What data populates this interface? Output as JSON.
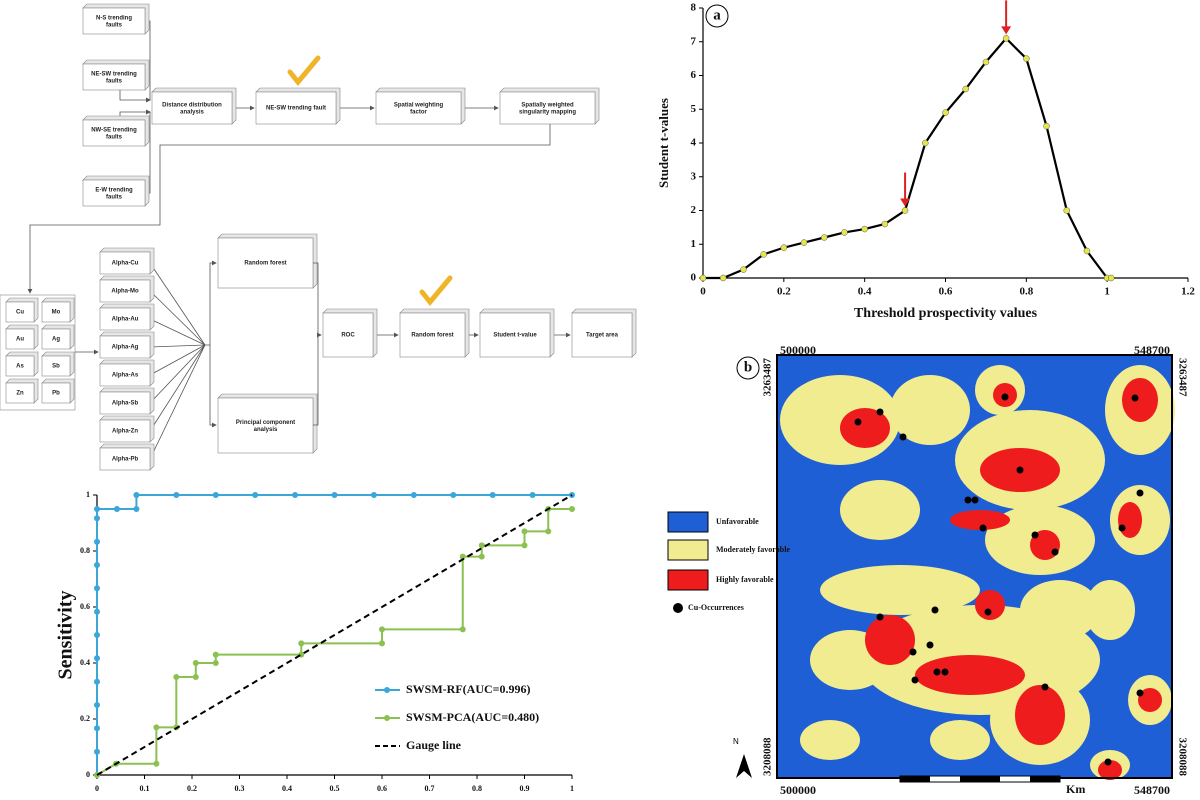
{
  "diagram": {
    "faults": [
      "N-S trending faults",
      "NE-SW trending faults",
      "NW-SE trending faults",
      "E-W  trending faults"
    ],
    "steps": [
      "Distance distribution analysis",
      "NE-SW trending fault",
      "Spatial weighting factor",
      "Spatially weighted singularity mapping"
    ],
    "elements": [
      "Cu",
      "Mo",
      "Au",
      "Ag",
      "As",
      "Sb",
      "Zn",
      "Pb"
    ],
    "alphas": [
      "Alpha-Cu",
      "Alpha-Mo",
      "Alpha-Au",
      "Alpha-Ag",
      "Alpha-As",
      "Alpha-Sb",
      "Alpha-Zn",
      "Alpha-Pb"
    ],
    "methods": [
      "Random forest",
      "Principal component analysis"
    ],
    "pipeline": [
      "ROC",
      "Random forest",
      "Student t-value",
      "Target area"
    ]
  },
  "chart_data": [
    {
      "type": "line",
      "panel": "a",
      "xlabel": "Threshold prospectivity values",
      "ylabel": "Student t-values",
      "x": [
        0,
        0.05,
        0.1,
        0.15,
        0.2,
        0.25,
        0.3,
        0.35,
        0.4,
        0.45,
        0.5,
        0.55,
        0.6,
        0.65,
        0.7,
        0.75,
        0.8,
        0.85,
        0.9,
        0.95,
        1.0,
        1.01
      ],
      "series": [
        {
          "color": "#000000",
          "marker_color": "#e6e64a",
          "values": [
            0,
            0,
            0.25,
            0.7,
            0.9,
            1.05,
            1.2,
            1.35,
            1.45,
            1.6,
            2.0,
            4.0,
            4.9,
            5.6,
            6.4,
            7.1,
            6.5,
            4.5,
            2.0,
            0.8,
            0,
            0
          ]
        }
      ],
      "xlim": [
        0,
        1.2
      ],
      "ylim": [
        0,
        8
      ],
      "xticks": [
        0,
        0.2,
        0.4,
        0.6,
        0.8,
        1,
        1.2
      ],
      "yticks": [
        0,
        1,
        2,
        3,
        4,
        5,
        6,
        7,
        8
      ]
    },
    {
      "type": "line",
      "ylabel": "Sensitivity",
      "series": [
        {
          "name": "SWSM-RF(AUC=0.996)",
          "color": "#3aa7d8",
          "x": [
            0,
            0,
            0,
            0,
            0,
            0,
            0,
            0,
            0,
            0,
            0,
            0,
            0,
            0.042,
            0.083,
            0.083,
            0.167,
            0.25,
            0.333,
            0.417,
            0.5,
            0.583,
            0.667,
            0.75,
            0.833,
            0.917,
            1
          ],
          "values": [
            0,
            0.083,
            0.167,
            0.25,
            0.333,
            0.417,
            0.5,
            0.583,
            0.667,
            0.75,
            0.833,
            0.917,
            0.95,
            0.95,
            0.95,
            1,
            1,
            1,
            1,
            1,
            1,
            1,
            1,
            1,
            1,
            1,
            1
          ]
        },
        {
          "name": "SWSM-PCA(AUC=0.480)",
          "color": "#8cc152",
          "x": [
            0,
            0.04,
            0.125,
            0.125,
            0.167,
            0.167,
            0.208,
            0.208,
            0.25,
            0.25,
            0.43,
            0.43,
            0.6,
            0.6,
            0.77,
            0.77,
            0.81,
            0.81,
            0.9,
            0.9,
            0.95,
            0.95,
            1
          ],
          "values": [
            0,
            0.04,
            0.04,
            0.17,
            0.17,
            0.35,
            0.35,
            0.4,
            0.4,
            0.43,
            0.43,
            0.47,
            0.47,
            0.52,
            0.52,
            0.78,
            0.78,
            0.82,
            0.82,
            0.87,
            0.87,
            0.95,
            0.95
          ]
        },
        {
          "name": "Gauge line",
          "color": "#000000",
          "dash": true,
          "x": [
            0,
            1
          ],
          "values": [
            0,
            1
          ]
        }
      ],
      "xlim": [
        0,
        1
      ],
      "ylim": [
        0,
        1
      ],
      "xticks": [
        0,
        0.1,
        0.2,
        0.3,
        0.4,
        0.5,
        0.6,
        0.7,
        0.8,
        0.9,
        1
      ],
      "yticks": [
        0,
        0.2,
        0.4,
        0.6,
        0.8,
        1
      ]
    }
  ],
  "map": {
    "panel": "b",
    "x_left": "500000",
    "x_right": "548700",
    "y_top": "3263487",
    "y_bottom": "3208088",
    "legend": [
      "Unfavorable",
      "Moderately favorable",
      "Highly favorable",
      "Cu-Occurrences"
    ],
    "scale_unit": "Km",
    "north": "N"
  }
}
